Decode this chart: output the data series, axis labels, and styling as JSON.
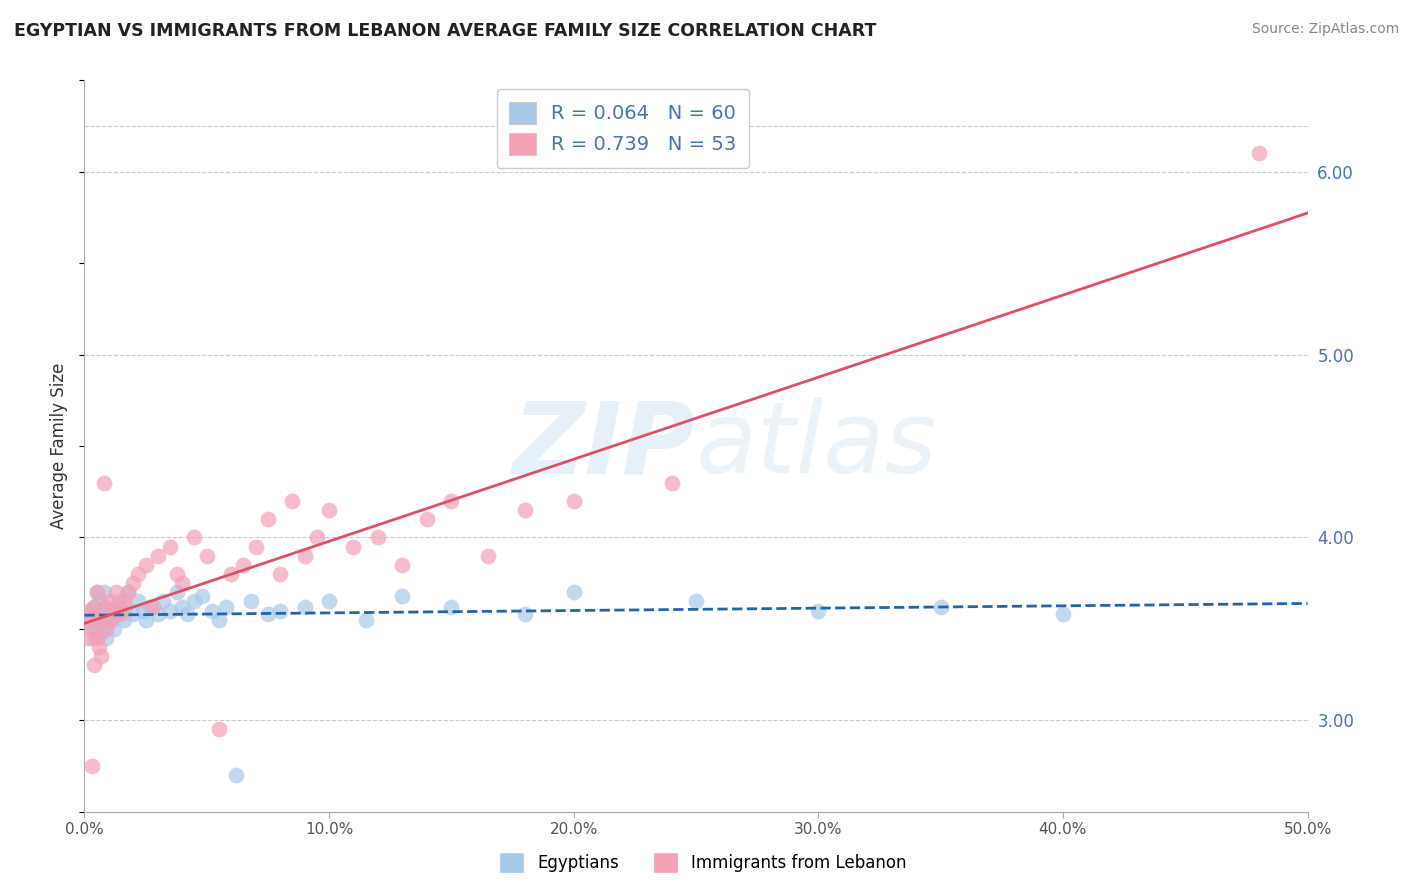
{
  "title": "EGYPTIAN VS IMMIGRANTS FROM LEBANON AVERAGE FAMILY SIZE CORRELATION CHART",
  "source": "Source: ZipAtlas.com",
  "ylabel": "Average Family Size",
  "legend_r1": "R = 0.064   N = 60",
  "legend_r2": "R = 0.739   N = 53",
  "legend_label1": "Egyptians",
  "legend_label2": "Immigrants from Lebanon",
  "blue_color": "#a8c8e8",
  "pink_color": "#f4a0b5",
  "blue_line_color": "#2166ac",
  "pink_line_color": "#e05060",
  "xmin": 0.0,
  "xmax": 0.5,
  "blue_scatter_x": [
    0.002,
    0.003,
    0.003,
    0.004,
    0.004,
    0.005,
    0.005,
    0.005,
    0.006,
    0.006,
    0.006,
    0.007,
    0.007,
    0.007,
    0.008,
    0.008,
    0.009,
    0.009,
    0.01,
    0.01,
    0.011,
    0.012,
    0.012,
    0.013,
    0.014,
    0.015,
    0.016,
    0.017,
    0.018,
    0.02,
    0.022,
    0.024,
    0.025,
    0.027,
    0.03,
    0.032,
    0.035,
    0.038,
    0.04,
    0.042,
    0.045,
    0.048,
    0.052,
    0.055,
    0.058,
    0.062,
    0.068,
    0.075,
    0.08,
    0.09,
    0.1,
    0.115,
    0.13,
    0.15,
    0.18,
    0.2,
    0.25,
    0.3,
    0.35,
    0.4
  ],
  "blue_scatter_y": [
    3.55,
    3.6,
    3.5,
    3.62,
    3.45,
    3.7,
    3.48,
    3.55,
    3.58,
    3.52,
    3.65,
    3.6,
    3.55,
    3.48,
    3.62,
    3.7,
    3.55,
    3.45,
    3.58,
    3.6,
    3.55,
    3.62,
    3.5,
    3.58,
    3.65,
    3.6,
    3.55,
    3.62,
    3.7,
    3.58,
    3.65,
    3.6,
    3.55,
    3.62,
    3.58,
    3.65,
    3.6,
    3.7,
    3.62,
    3.58,
    3.65,
    3.68,
    3.6,
    3.55,
    3.62,
    2.7,
    3.65,
    3.58,
    3.6,
    3.62,
    3.65,
    3.55,
    3.68,
    3.62,
    3.58,
    3.7,
    3.65,
    3.6,
    3.62,
    3.58
  ],
  "pink_scatter_x": [
    0.001,
    0.002,
    0.002,
    0.003,
    0.003,
    0.004,
    0.004,
    0.005,
    0.005,
    0.006,
    0.006,
    0.007,
    0.008,
    0.008,
    0.009,
    0.01,
    0.011,
    0.012,
    0.013,
    0.014,
    0.015,
    0.016,
    0.018,
    0.02,
    0.022,
    0.025,
    0.028,
    0.03,
    0.035,
    0.038,
    0.04,
    0.045,
    0.05,
    0.055,
    0.06,
    0.065,
    0.07,
    0.075,
    0.08,
    0.085,
    0.09,
    0.095,
    0.1,
    0.11,
    0.12,
    0.13,
    0.14,
    0.15,
    0.165,
    0.18,
    0.2,
    0.24,
    0.48
  ],
  "pink_scatter_y": [
    3.55,
    3.6,
    3.45,
    3.5,
    2.75,
    3.62,
    3.3,
    3.45,
    3.7,
    3.4,
    3.55,
    3.35,
    4.3,
    3.62,
    3.5,
    3.65,
    3.55,
    3.6,
    3.7,
    3.62,
    3.58,
    3.65,
    3.7,
    3.75,
    3.8,
    3.85,
    3.62,
    3.9,
    3.95,
    3.8,
    3.75,
    4.0,
    3.9,
    2.95,
    3.8,
    3.85,
    3.95,
    4.1,
    3.8,
    4.2,
    3.9,
    4.0,
    4.15,
    3.95,
    4.0,
    3.85,
    4.1,
    4.2,
    3.9,
    4.15,
    4.2,
    4.3,
    6.1
  ]
}
